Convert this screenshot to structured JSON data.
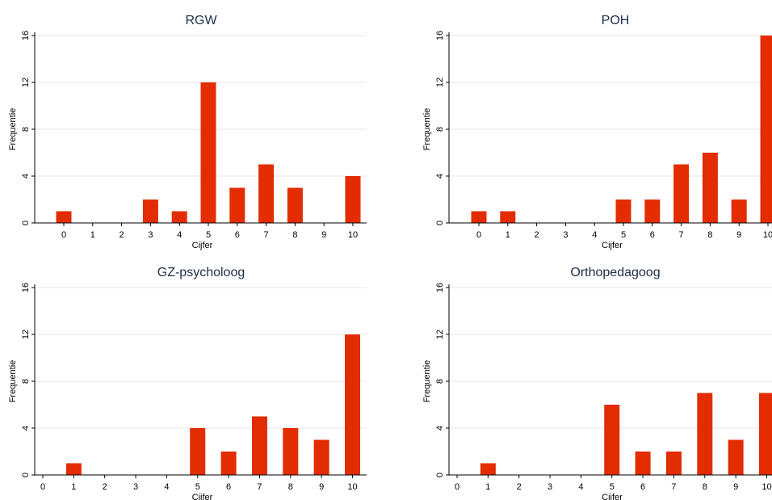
{
  "chart_data": [
    {
      "type": "bar",
      "title": "RGW",
      "xlabel": "Cijfer",
      "ylabel": "Frequentie",
      "categories": [
        "0",
        "1",
        "2",
        "3",
        "4",
        "5",
        "6",
        "7",
        "8",
        "9",
        "10"
      ],
      "values": [
        1,
        0,
        0,
        2,
        1,
        12,
        3,
        5,
        3,
        0,
        4
      ],
      "yticks": [
        0,
        4,
        8,
        12,
        16
      ],
      "ylim": [
        0,
        16
      ],
      "color": "#e32c00",
      "grid": true
    },
    {
      "type": "bar",
      "title": "POH",
      "xlabel": "Cijfer",
      "ylabel": "Frequentie",
      "categories": [
        "0",
        "1",
        "2",
        "3",
        "4",
        "5",
        "6",
        "7",
        "8",
        "9",
        "10"
      ],
      "values": [
        1,
        1,
        0,
        0,
        0,
        2,
        2,
        5,
        6,
        2,
        16
      ],
      "yticks": [
        0,
        4,
        8,
        12,
        16
      ],
      "ylim": [
        0,
        16
      ],
      "color": "#e32c00",
      "grid": true
    },
    {
      "type": "bar",
      "title": "GZ-psycholoog",
      "xlabel": "Cijfer",
      "ylabel": "Frequentie",
      "categories": [
        "0",
        "1",
        "2",
        "3",
        "4",
        "5",
        "6",
        "7",
        "8",
        "9",
        "10"
      ],
      "values": [
        0,
        1,
        0,
        0,
        0,
        4,
        2,
        5,
        4,
        3,
        12
      ],
      "yticks": [
        0,
        4,
        8,
        12,
        16
      ],
      "ylim": [
        0,
        16
      ],
      "color": "#e32c00",
      "grid": true
    },
    {
      "type": "bar",
      "title": "Orthopedagoog",
      "xlabel": "Cijfer",
      "ylabel": "Frequentie",
      "categories": [
        "0",
        "1",
        "2",
        "3",
        "4",
        "5",
        "6",
        "7",
        "8",
        "9",
        "10"
      ],
      "values": [
        0,
        1,
        0,
        0,
        0,
        6,
        2,
        2,
        7,
        3,
        7
      ],
      "yticks": [
        0,
        4,
        8,
        12,
        16
      ],
      "ylim": [
        0,
        16
      ],
      "color": "#e32c00",
      "grid": true
    }
  ]
}
